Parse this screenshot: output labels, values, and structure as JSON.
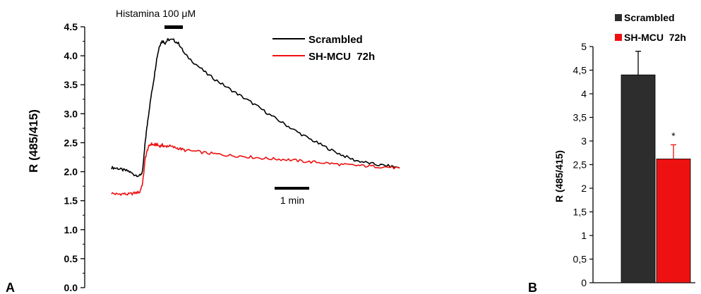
{
  "chart_data": [
    {
      "panel_label": "A",
      "type": "line",
      "ylabel": "R (485/415)",
      "ylim": [
        0.0,
        4.5
      ],
      "yticks": [
        "0.0",
        "0.5",
        "1.0",
        "1.5",
        "2.0",
        "2.5",
        "3.0",
        "3.5",
        "4.0",
        "4.5"
      ],
      "x": [
        0,
        0.1,
        0.2,
        0.3,
        0.4,
        0.5,
        0.55,
        0.6,
        0.65,
        0.7,
        0.75,
        0.8,
        0.85,
        0.9,
        0.95,
        1.0,
        1.1,
        1.2,
        1.3,
        1.5,
        1.7,
        1.9,
        2.1,
        2.3,
        2.5,
        2.7,
        2.9,
        3.1,
        3.3,
        3.5,
        3.7,
        3.9,
        4.1,
        4.3,
        4.5,
        4.7,
        4.9,
        5.1
      ],
      "series": [
        {
          "name": "Scrambled",
          "color": "#000000",
          "values": [
            2.07,
            2.06,
            2.03,
            2.01,
            1.95,
            1.93,
            2.0,
            2.55,
            2.95,
            3.3,
            3.6,
            3.95,
            4.18,
            4.26,
            4.22,
            4.28,
            4.27,
            4.2,
            4.02,
            3.85,
            3.68,
            3.55,
            3.42,
            3.3,
            3.18,
            3.05,
            2.92,
            2.8,
            2.68,
            2.57,
            2.47,
            2.37,
            2.28,
            2.2,
            2.16,
            2.12,
            2.1,
            2.07
          ]
        },
        {
          "name": "SH-MCU  72h",
          "color": "#ee1111",
          "values": [
            1.63,
            1.61,
            1.62,
            1.61,
            1.63,
            1.65,
            1.8,
            2.25,
            2.42,
            2.48,
            2.46,
            2.47,
            2.44,
            2.46,
            2.43,
            2.45,
            2.42,
            2.4,
            2.37,
            2.35,
            2.32,
            2.3,
            2.28,
            2.27,
            2.25,
            2.23,
            2.22,
            2.21,
            2.19,
            2.17,
            2.16,
            2.14,
            2.12,
            2.11,
            2.1,
            2.09,
            2.08,
            2.06
          ]
        }
      ],
      "annotations": {
        "stimulus_label": "Histamina 100 μM",
        "scale_bar_label": "1 min"
      },
      "legend_placement": "top-right"
    },
    {
      "panel_label": "B",
      "type": "bar",
      "ylabel": "R (485/415)",
      "ylim": [
        0,
        5
      ],
      "yticks": [
        "0",
        "0,5",
        "1",
        "1,5",
        "2",
        "2,5",
        "3",
        "3,5",
        "4",
        "4,5",
        "5"
      ],
      "categories": [
        "Scrambled",
        "SH-MCU  72h"
      ],
      "values": [
        4.4,
        2.62
      ],
      "errors": [
        0.5,
        0.3
      ],
      "colors": [
        "#2d2d2d",
        "#ee1111"
      ],
      "significance": [
        "",
        "*"
      ],
      "legend_placement": "top"
    }
  ]
}
